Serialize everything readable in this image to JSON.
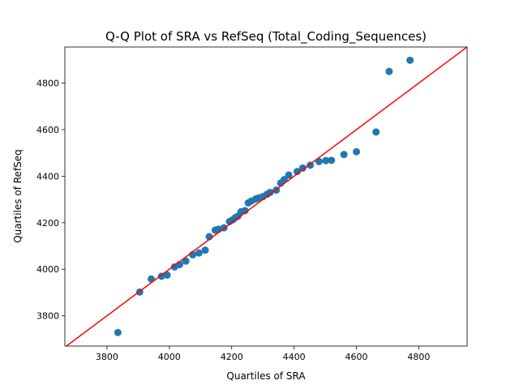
{
  "chart_data": {
    "type": "scatter",
    "title": "Q-Q Plot of SRA vs RefSeq (Total_Coding_Sequences)",
    "xlabel": "Quartiles of SRA",
    "ylabel": "Quartiles of RefSeq",
    "xlim": [
      3665,
      4955
    ],
    "ylim": [
      3670,
      4955
    ],
    "xticks": [
      3800,
      4000,
      4200,
      4400,
      4600,
      4800
    ],
    "yticks": [
      3800,
      4000,
      4200,
      4400,
      4600,
      4800
    ],
    "grid": false,
    "legend": "none",
    "point_color": "#1f77b4",
    "reference_line": {
      "label": "y = x",
      "color": "#ff0000",
      "x": [
        3665,
        4955
      ],
      "y": [
        3665,
        4955
      ]
    },
    "series": [
      {
        "x": [
          3835,
          3905,
          3942,
          3975,
          3993,
          4017,
          4033,
          4053,
          4075,
          4095,
          4115,
          4128,
          4147,
          4158,
          4175,
          4193,
          4203,
          4212,
          4220,
          4230,
          4243,
          4253,
          4263,
          4277,
          4287,
          4300,
          4313,
          4323,
          4343,
          4357,
          4368,
          4383,
          4410,
          4428,
          4452,
          4480,
          4502,
          4520,
          4560,
          4600,
          4663,
          4705,
          4772
        ],
        "y": [
          3728,
          3902,
          3958,
          3970,
          3975,
          4010,
          4020,
          4035,
          4062,
          4070,
          4082,
          4140,
          4168,
          4172,
          4178,
          4205,
          4212,
          4222,
          4228,
          4247,
          4252,
          4285,
          4293,
          4302,
          4307,
          4312,
          4322,
          4330,
          4340,
          4370,
          4385,
          4405,
          4420,
          4435,
          4447,
          4463,
          4467,
          4468,
          4493,
          4505,
          4590,
          4850,
          4898
        ]
      }
    ]
  }
}
